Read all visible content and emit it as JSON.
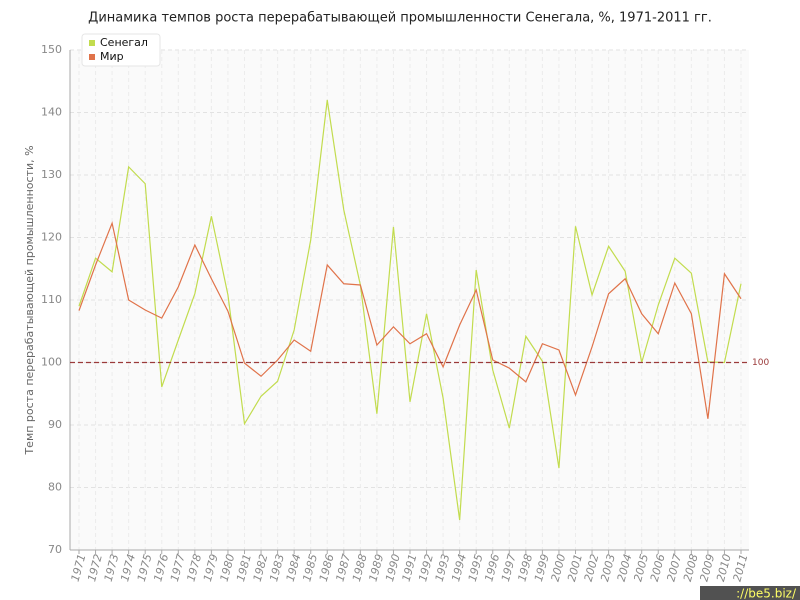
{
  "chart_data": {
    "type": "line",
    "title": "Динамика темпов роста перерабатывающей промышленности Сенегала, %, 1971-2011 гг.",
    "y_label": "Темп роста перерабатывающей промышленности, %",
    "categories": [
      "1971",
      "1972",
      "1973",
      "1974",
      "1975",
      "1976",
      "1977",
      "1978",
      "1979",
      "1980",
      "1981",
      "1982",
      "1983",
      "1984",
      "1985",
      "1986",
      "1987",
      "1988",
      "1989",
      "1990",
      "1991",
      "1992",
      "1993",
      "1994",
      "1995",
      "1996",
      "1997",
      "1998",
      "1999",
      "2000",
      "2001",
      "2002",
      "2003",
      "2004",
      "2005",
      "2006",
      "2007",
      "2008",
      "2009",
      "2010",
      "2011"
    ],
    "series": [
      {
        "name": "Сенегал",
        "color": "#c2dc4e",
        "values": [
          109,
          116.7,
          114.5,
          131.3,
          128.6,
          96.1,
          103.6,
          111,
          123.4,
          110.8,
          90.2,
          94.6,
          97,
          105.2,
          119.6,
          142,
          124.4,
          112.4,
          91.8,
          121.7,
          93.7,
          107.8,
          94.3,
          74.8,
          114.8,
          98.8,
          89.5,
          104.2,
          100.2,
          83.1,
          121.8,
          110.8,
          118.6,
          114.6,
          100,
          109.2,
          116.7,
          114.3,
          100.1,
          100,
          112.6
        ]
      },
      {
        "name": "Мир",
        "color": "#e0734a",
        "values": [
          108.3,
          115.6,
          122.3,
          110,
          108.4,
          107.1,
          112.1,
          118.8,
          113.4,
          108.2,
          99.9,
          97.8,
          100.4,
          103.6,
          101.8,
          115.6,
          112.6,
          112.4,
          102.8,
          105.7,
          103,
          104.6,
          99.3,
          106,
          111.6,
          100.4,
          99.1,
          96.9,
          103,
          102,
          94.8,
          102.5,
          111,
          113.4,
          107.8,
          104.6,
          112.7,
          107.8,
          91,
          114.2,
          110.2
        ]
      }
    ],
    "ylim": [
      70,
      150
    ],
    "yticks": [
      70,
      80,
      90,
      100,
      110,
      120,
      130,
      140,
      150
    ],
    "grid": true,
    "legend_position": "upper left",
    "reference_line": 100,
    "reference_color": "#9b3a3a",
    "watermark": "://be5.biz/"
  }
}
